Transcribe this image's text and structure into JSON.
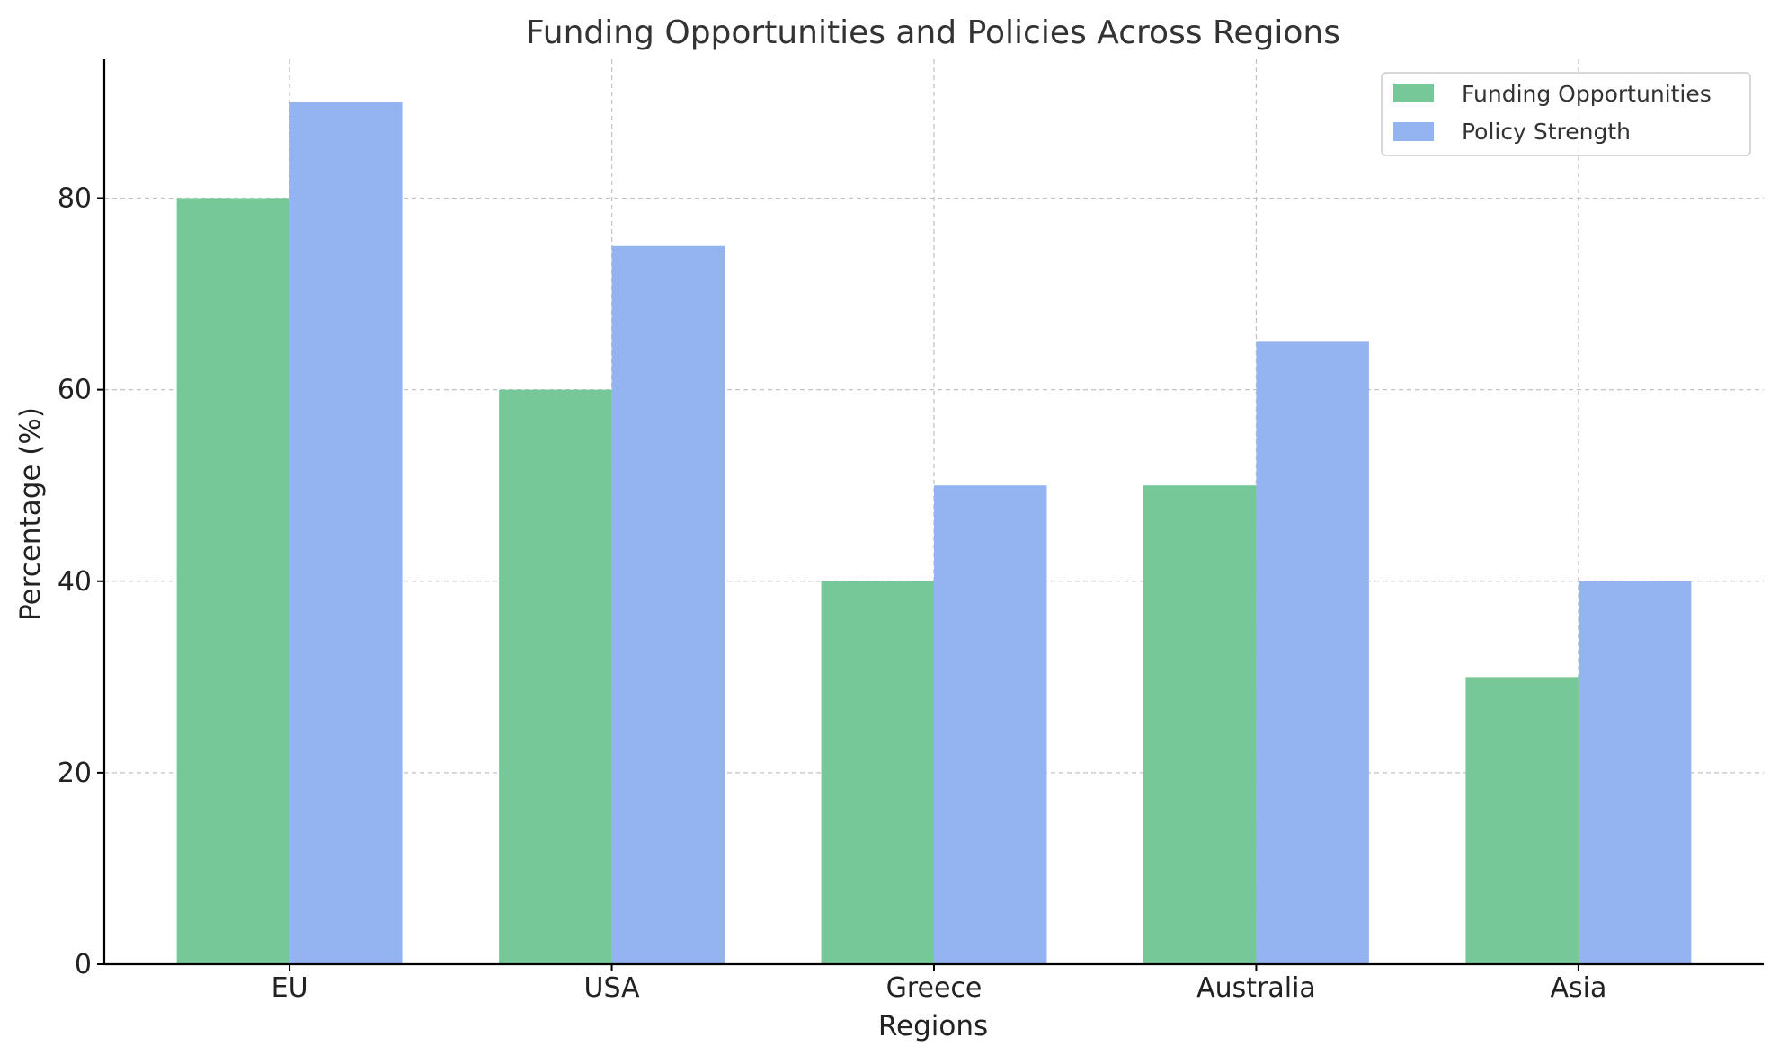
{
  "chart_data": {
    "type": "bar",
    "title": "Funding Opportunities and Policies Across Regions",
    "xlabel": "Regions",
    "ylabel": "Percentage (%)",
    "categories": [
      "EU",
      "USA",
      "Greece",
      "Australia",
      "Asia"
    ],
    "series": [
      {
        "name": "Funding Opportunities",
        "values": [
          80,
          60,
          40,
          50,
          30
        ],
        "color": "#77c898"
      },
      {
        "name": "Policy Strength",
        "values": [
          90,
          75,
          50,
          65,
          40
        ],
        "color": "#93b3f1"
      }
    ],
    "ylim": [
      0,
      94.5
    ],
    "yticks": [
      0,
      20,
      40,
      60,
      80
    ],
    "grid": true,
    "legend_position": "top-right"
  }
}
